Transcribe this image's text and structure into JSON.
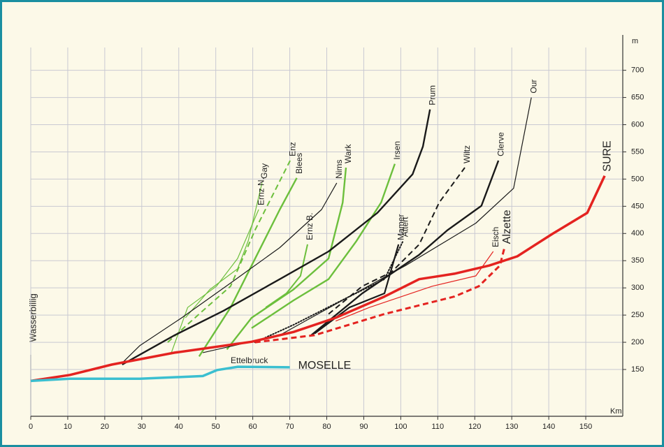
{
  "chart_data": {
    "type": "line",
    "annotations": {
      "start": "Wasserbillig",
      "junction": "Ettelbruck"
    },
    "ylabel": "m",
    "xlabel": "Km",
    "xlim": [
      0,
      160
    ],
    "ylim": [
      64,
      765
    ],
    "xticks": [
      0,
      10,
      20,
      30,
      40,
      50,
      60,
      70,
      80,
      90,
      100,
      110,
      120,
      130,
      140,
      150
    ],
    "yticks": [
      150,
      200,
      250,
      300,
      350,
      400,
      450,
      500,
      550,
      600,
      650,
      700
    ],
    "grid": true,
    "series": [
      {
        "name": "Gay",
        "color": "#6cbf3c",
        "style": "solid",
        "width": 1.2,
        "x": [
          41.8,
          48.4,
          55.9,
          58.8,
          62.5
        ],
        "values": [
          245,
          297,
          335,
          387,
          493
        ]
      },
      {
        "name": "Enz",
        "color": "#6cbf3c",
        "style": "dashed",
        "width": 2,
        "x": [
          37,
          46.5,
          54,
          60.6,
          70.1
        ],
        "values": [
          200,
          258,
          303,
          406,
          534
        ]
      },
      {
        "name": "Ernz N.",
        "color": "#6cbf3c",
        "style": "solid",
        "width": 1.2,
        "x": [
          38,
          42.4,
          50.2,
          55.9,
          61.6
        ],
        "values": [
          181,
          264,
          303,
          354,
          444
        ]
      },
      {
        "name": "Blees",
        "color": "#6cbf3c",
        "style": "solid",
        "width": 2.4,
        "x": [
          45.5,
          54,
          59.7,
          67.3,
          71.9
        ],
        "values": [
          174,
          264,
          341,
          444,
          502
        ]
      },
      {
        "name": "Nims",
        "color": "#1a1a1a",
        "style": "solid",
        "width": 1.2,
        "x": [
          24.7,
          29.5,
          40.8,
          54,
          67.3,
          78.6,
          82.7
        ],
        "values": [
          162,
          194,
          245,
          309,
          374,
          444,
          493
        ]
      },
      {
        "name": "Wark",
        "color": "#6cbf3c",
        "style": "solid",
        "width": 2.4,
        "x": [
          53,
          59.7,
          71,
          80.5,
          84.3,
          85.2
        ],
        "values": [
          187,
          245,
          297,
          354,
          457,
          521
        ]
      },
      {
        "name": "Ernz B.",
        "color": "#6cbf3c",
        "style": "solid",
        "width": 2,
        "x": [
          63.5,
          69.1,
          72.9,
          74.8
        ],
        "values": [
          264,
          290,
          322,
          380
        ]
      },
      {
        "name": "Irsen",
        "color": "#6cbf3c",
        "style": "solid",
        "width": 2.4,
        "x": [
          59.7,
          71,
          80.5,
          88,
          94.7,
          98.4
        ],
        "values": [
          226,
          277,
          316,
          386,
          457,
          528
        ]
      },
      {
        "name": "Prum",
        "color": "#1a1a1a",
        "style": "solid",
        "width": 2.4,
        "x": [
          24.7,
          38.9,
          52.1,
          67.3,
          80.5,
          93.7,
          103.2,
          106,
          107.9
        ],
        "values": [
          159,
          213,
          258,
          316,
          367,
          438,
          509,
          560,
          628
        ]
      },
      {
        "name": "Wiltz",
        "color": "#1a1a1a",
        "style": "dashed",
        "width": 2,
        "x": [
          80.5,
          89.6,
          97.5,
          105,
          110.4,
          117.3
        ],
        "values": [
          252,
          303,
          329,
          380,
          457,
          521
        ]
      },
      {
        "name": "Clerve",
        "color": "#1a1a1a",
        "style": "solid",
        "width": 2.4,
        "x": [
          75.8,
          89.6,
          105,
          112.6,
          121.8,
          126.4
        ],
        "values": [
          213,
          290,
          361,
          406,
          451,
          534
        ]
      },
      {
        "name": "Our",
        "color": "#1a1a1a",
        "style": "solid",
        "width": 1.2,
        "x": [
          46.5,
          67.3,
          86.1,
          101.3,
          120.3,
          130.5,
          135.3
        ],
        "values": [
          181,
          213,
          284,
          341,
          419,
          483,
          650
        ]
      },
      {
        "name": "Mamer",
        "color": "#1a1a1a",
        "style": "solid",
        "width": 2.2,
        "x": [
          76.7,
          86.1,
          95.6,
          97.5,
          99.4
        ],
        "values": [
          216,
          264,
          290,
          335,
          380
        ]
      },
      {
        "name": "Attert",
        "color": "#1a1a1a",
        "style": "dotted",
        "width": 2,
        "x": [
          60.6,
          71,
          86.1,
          95.6,
          100.6
        ],
        "values": [
          200,
          232,
          284,
          316,
          386
        ]
      },
      {
        "name": "Eisch",
        "color": "#e42320",
        "style": "solid",
        "width": 1.2,
        "x": [
          82.4,
          91.5,
          108.5,
          120.3,
          125
        ],
        "values": [
          239,
          264,
          303,
          322,
          367
        ]
      },
      {
        "name": "Alzette",
        "color": "#e42320",
        "style": "dashed",
        "width": 3,
        "x": [
          60.6,
          76.7,
          95.6,
          114.5,
          121.1,
          126.8,
          128
        ],
        "values": [
          200,
          213,
          252,
          284,
          303,
          341,
          373
        ]
      },
      {
        "name": "SURE",
        "color": "#e42320",
        "style": "solid",
        "width": 3.5,
        "x": [
          0,
          10.6,
          21.9,
          38.9,
          48.4,
          59.7,
          71,
          82.4,
          95.6,
          105,
          114.5,
          123.9,
          131.5,
          140.9,
          150.4,
          155.1
        ],
        "values": [
          129,
          140,
          159,
          181,
          190,
          201,
          219,
          245,
          284,
          316,
          326,
          341,
          358,
          399,
          438,
          506
        ]
      },
      {
        "name": "MOSELLE",
        "color": "#3bbfd0",
        "style": "solid",
        "width": 3.5,
        "x": [
          0,
          10.6,
          29.5,
          46.5,
          50.4,
          56,
          70
        ],
        "values": [
          129,
          133,
          133,
          138,
          149,
          155,
          154
        ]
      }
    ]
  }
}
